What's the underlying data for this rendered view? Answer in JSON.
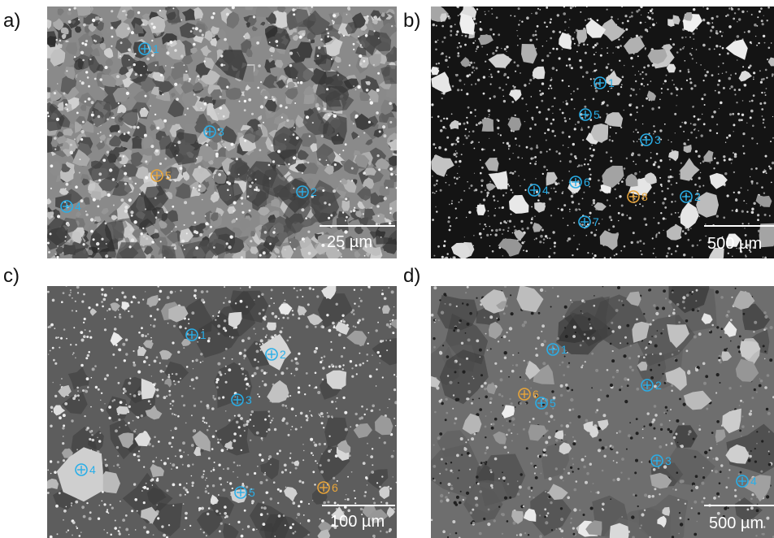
{
  "panels": [
    {
      "label": "a)",
      "scale_bar": "25 µm",
      "markers": [
        {
          "n": "1",
          "color": "#29aee8"
        },
        {
          "n": "2",
          "color": "#29aee8"
        },
        {
          "n": "3",
          "color": "#29aee8"
        },
        {
          "n": "4",
          "color": "#29aee8"
        },
        {
          "n": "5",
          "color": "#e8a53a"
        }
      ]
    },
    {
      "label": "b)",
      "scale_bar": "500 µm",
      "markers": [
        {
          "n": "1",
          "color": "#29aee8"
        },
        {
          "n": "2",
          "color": "#29aee8"
        },
        {
          "n": "3",
          "color": "#29aee8"
        },
        {
          "n": "4",
          "color": "#29aee8"
        },
        {
          "n": "5",
          "color": "#29aee8"
        },
        {
          "n": "6",
          "color": "#29aee8"
        },
        {
          "n": "7",
          "color": "#29aee8"
        },
        {
          "n": "8",
          "color": "#e8a53a"
        }
      ]
    },
    {
      "label": "c)",
      "scale_bar": "100 µm",
      "markers": [
        {
          "n": "1",
          "color": "#29aee8"
        },
        {
          "n": "2",
          "color": "#29aee8"
        },
        {
          "n": "3",
          "color": "#29aee8"
        },
        {
          "n": "4",
          "color": "#29aee8"
        },
        {
          "n": "5",
          "color": "#29aee8"
        },
        {
          "n": "6",
          "color": "#e8a53a"
        }
      ]
    },
    {
      "label": "d)",
      "scale_bar": "500 µm",
      "markers": [
        {
          "n": "1",
          "color": "#29aee8"
        },
        {
          "n": "2",
          "color": "#29aee8"
        },
        {
          "n": "3",
          "color": "#29aee8"
        },
        {
          "n": "4",
          "color": "#29aee8"
        },
        {
          "n": "5",
          "color": "#29aee8"
        },
        {
          "n": "6",
          "color": "#e8a53a"
        }
      ]
    }
  ]
}
